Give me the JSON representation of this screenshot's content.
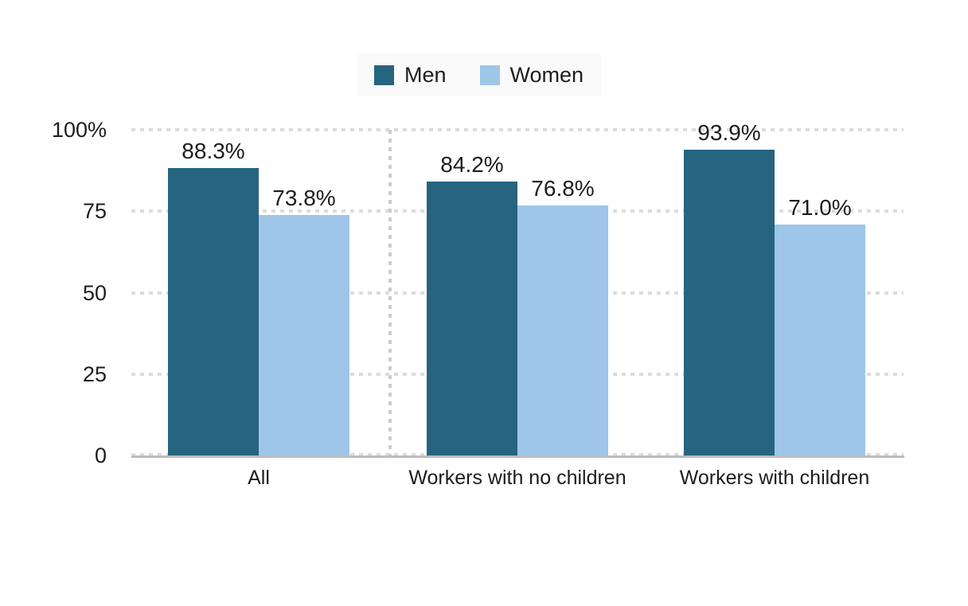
{
  "chart_data": {
    "type": "bar",
    "categories": [
      "All",
      "Workers with no children",
      "Workers with children"
    ],
    "series": [
      {
        "name": "Men",
        "color": "#266480",
        "values": [
          88.3,
          84.2,
          93.9
        ],
        "value_labels": [
          "88.3%",
          "84.2%",
          "93.9%"
        ]
      },
      {
        "name": "Women",
        "color": "#9ec6e8",
        "values": [
          73.8,
          76.8,
          71.0
        ],
        "value_labels": [
          "73.8%",
          "76.8%",
          "71.0%"
        ]
      }
    ],
    "y_axis": {
      "ticks": [
        0,
        25,
        50,
        75,
        100
      ],
      "tick_labels": [
        "0",
        "25",
        "50",
        "75",
        "100%"
      ],
      "range": [
        0,
        100
      ],
      "grid": "dotted horizontal lines"
    },
    "legend": {
      "position": "top-center",
      "entries": [
        "Men",
        "Women"
      ]
    },
    "annotations": {
      "divider": "dotted vertical line between All group and the two worker groups"
    }
  },
  "colors": {
    "men": "#266480",
    "women": "#9ec6e8",
    "gridline": "#dcdcdc",
    "baseline": "#bdbdbd",
    "legend_background": "#fafafa",
    "text": "#1d1d1d"
  }
}
